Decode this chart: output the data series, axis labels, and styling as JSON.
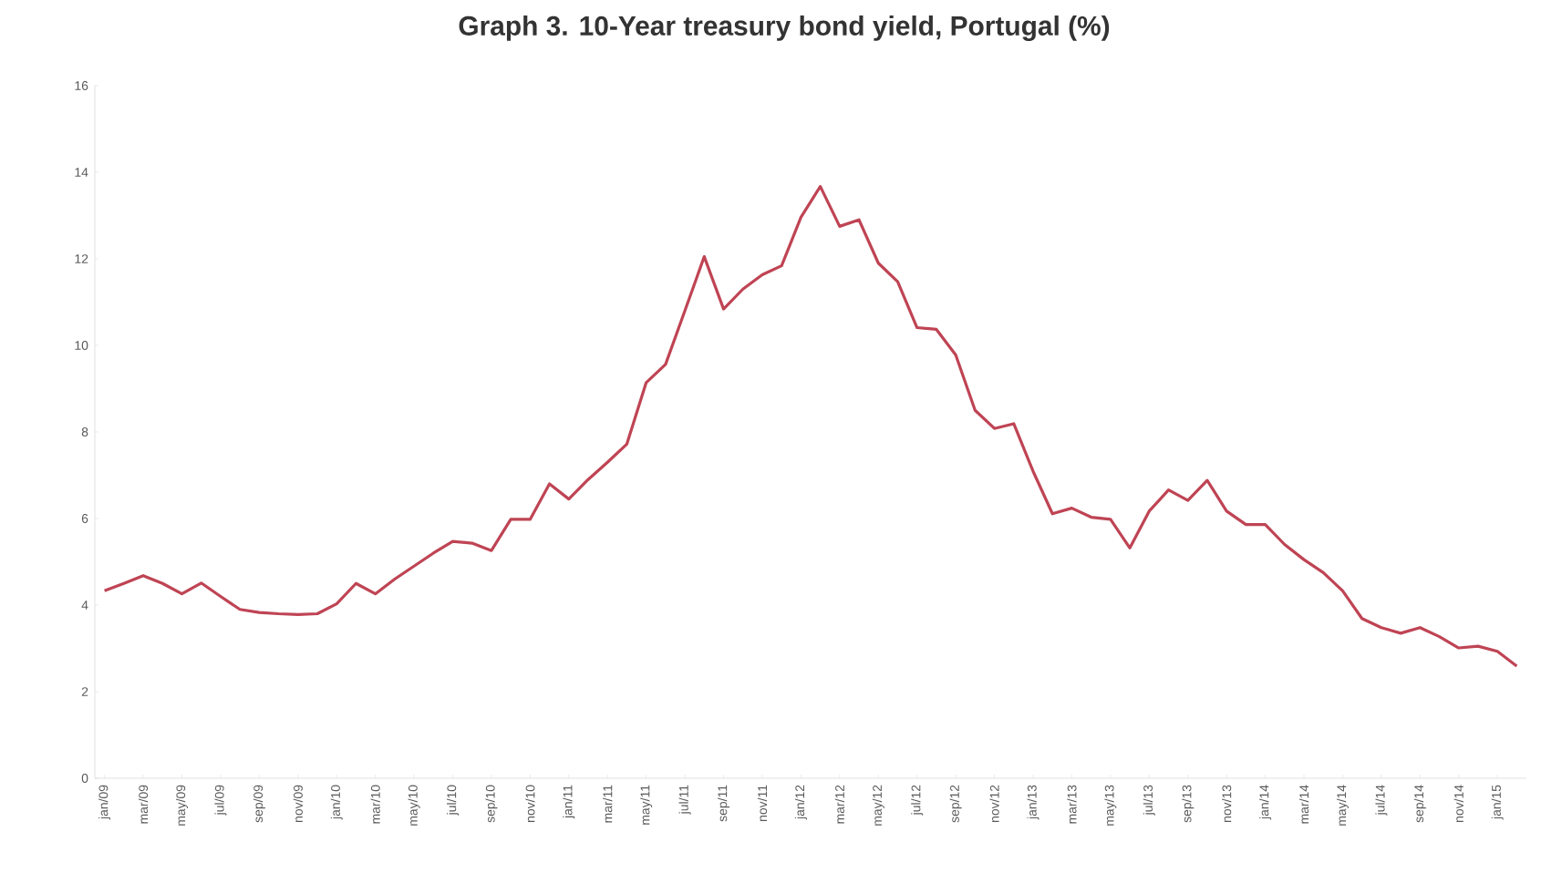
{
  "chart_data": {
    "type": "line",
    "title": "Graph 3. 10-Year treasury bond yield, Portugal (%)",
    "categories": [
      "jan/09",
      null,
      "mar/09",
      null,
      "may/09",
      null,
      "jul/09",
      null,
      "sep/09",
      null,
      "nov/09",
      null,
      "jan/10",
      null,
      "mar/10",
      null,
      "may/10",
      null,
      "jul/10",
      null,
      "sep/10",
      null,
      "nov/10",
      null,
      "jan/11",
      null,
      "mar/11",
      null,
      "may/11",
      null,
      "jul/11",
      null,
      "sep/11",
      null,
      "nov/11",
      null,
      "jan/12",
      null,
      "mar/12",
      null,
      "may/12",
      null,
      "jul/12",
      null,
      "sep/12",
      null,
      "nov/12",
      null,
      "jan/13",
      null,
      "mar/13",
      null,
      "may/13",
      null,
      "jul/13",
      null,
      "sep/13",
      null,
      "nov/13",
      null,
      "jan/14",
      null,
      "mar/14",
      null,
      "may/14",
      null,
      "jul/14",
      null,
      "sep/14",
      null,
      "nov/14",
      null,
      "jan/15",
      null
    ],
    "series": [
      {
        "color": "#bf4454",
        "values": [
          4.33,
          4.5,
          4.68,
          4.5,
          4.26,
          4.51,
          4.2,
          3.9,
          3.83,
          3.8,
          3.78,
          3.8,
          4.03,
          4.5,
          4.26,
          4.6,
          4.9,
          5.2,
          5.47,
          5.43,
          5.26,
          5.98,
          5.98,
          6.8,
          6.45,
          6.9,
          7.3,
          7.72,
          9.14,
          9.56,
          10.8,
          12.05,
          10.84,
          11.3,
          11.63,
          11.84,
          12.96,
          13.67,
          12.75,
          12.9,
          11.9,
          11.47,
          10.41,
          10.37,
          9.78,
          8.5,
          8.08,
          8.19,
          7.09,
          6.11,
          6.24,
          6.03,
          5.98,
          5.32,
          6.17,
          6.66,
          6.42,
          6.88,
          6.17,
          5.86,
          5.86,
          5.4,
          5.05,
          4.75,
          4.33,
          3.69,
          3.48,
          3.35,
          3.48,
          3.27,
          3.01,
          3.05,
          2.93,
          2.59
        ]
      }
    ],
    "ylim": [
      0,
      16
    ],
    "yticks": [
      0,
      2,
      4,
      6,
      8,
      10,
      12,
      14,
      16
    ],
    "grid": false,
    "marker": "none",
    "line_style": "solid"
  }
}
